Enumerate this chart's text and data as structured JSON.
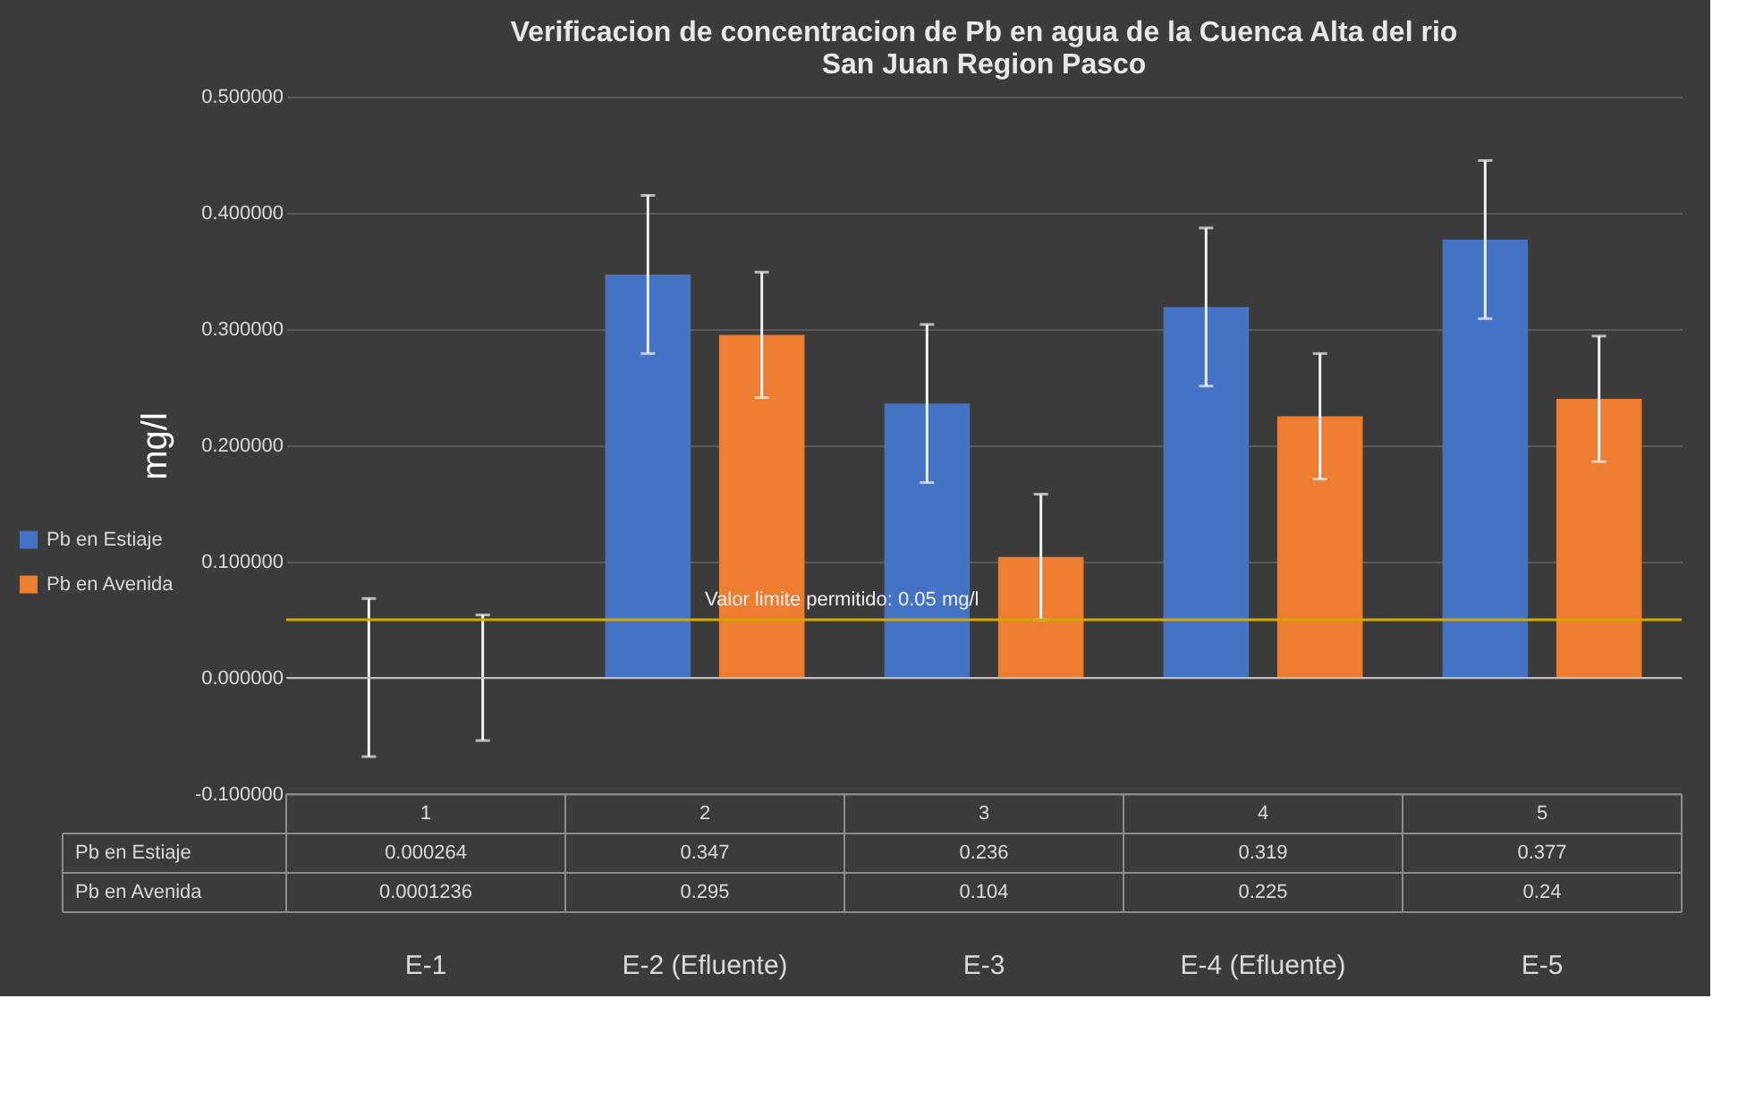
{
  "chart_data": {
    "type": "bar",
    "title": "Verificacion de concentracion de Pb en agua de la Cuenca Alta del rio San Juan Region Pasco",
    "ylabel": "mg/l",
    "categories": [
      "E-1",
      "E-2 (Efluente)",
      "E-3",
      "E-4 (Efluente)",
      "E-5"
    ],
    "series": [
      {
        "name": "Pb en Estiaje",
        "color": "#4472c4",
        "values": [
          0.000264,
          0.347,
          0.236,
          0.319,
          0.377
        ],
        "errors": [
          0.068,
          0.068,
          0.068,
          0.068,
          0.068
        ]
      },
      {
        "name": "Pb en Avenida",
        "color": "#ed7d31",
        "values": [
          0.0001236,
          0.295,
          0.104,
          0.225,
          0.24
        ],
        "errors": [
          0.054,
          0.054,
          0.054,
          0.054,
          0.054
        ]
      }
    ],
    "ylim": [
      -0.1,
      0.5
    ],
    "yticks": [
      {
        "value": -0.1,
        "label": "-0.100000"
      },
      {
        "value": 0,
        "label": "0.000000"
      },
      {
        "value": 0.1,
        "label": "0.100000"
      },
      {
        "value": 0.2,
        "label": "0.200000"
      },
      {
        "value": 0.3,
        "label": "0.300000"
      },
      {
        "value": 0.4,
        "label": "0.400000"
      },
      {
        "value": 0.5,
        "label": "0.500000"
      }
    ],
    "ref_lines": [
      {
        "axis": "y",
        "value": 0.05,
        "label": "Valor limite permitido: 0.05 mg/l",
        "color": "#d4a900"
      }
    ],
    "annotations": [
      "1",
      "2",
      "3",
      "4",
      "5"
    ],
    "data_labels": true,
    "grid": "y",
    "legend": "left"
  }
}
